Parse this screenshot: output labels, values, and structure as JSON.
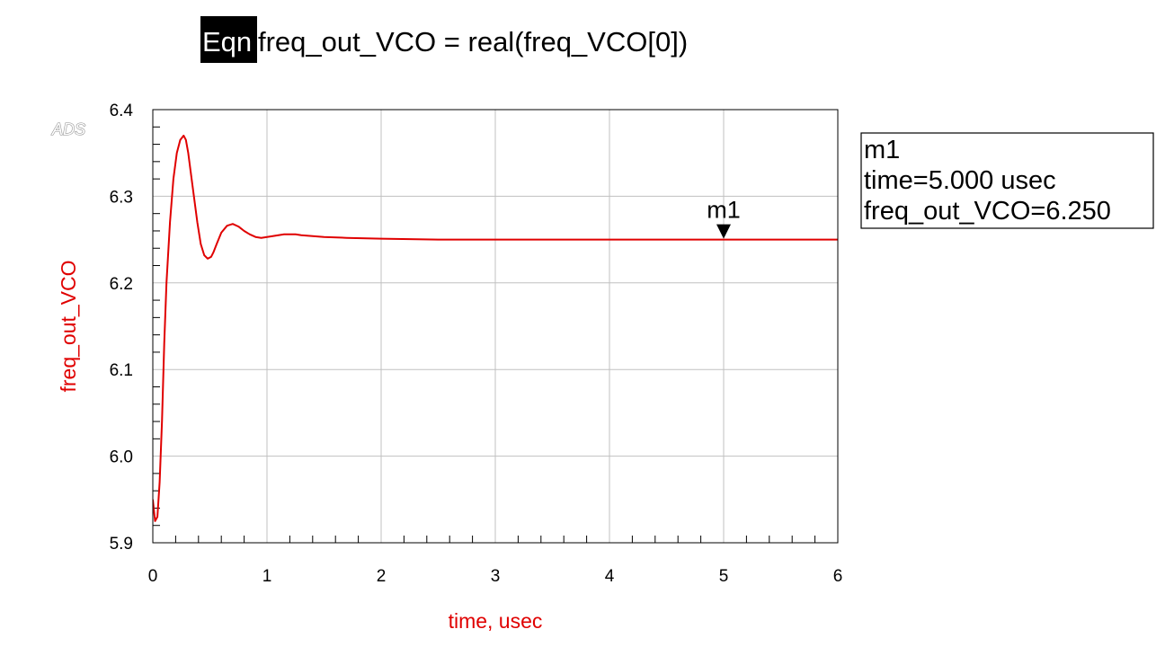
{
  "equation": {
    "tag": "Eqn",
    "text": "freq_out_VCO = real(freq_VCO[0])"
  },
  "logo": "ADS",
  "colors": {
    "trace": "#e00000",
    "axis_title": "#e00000",
    "grid": "#c0c0c0",
    "frame": "#000000"
  },
  "chart_data": {
    "type": "line",
    "xlabel": "time, usec",
    "ylabel": "freq_out_VCO",
    "xlim": [
      0,
      6
    ],
    "ylim": [
      5.9,
      6.4
    ],
    "xticks": [
      "0",
      "1",
      "2",
      "3",
      "4",
      "5",
      "6"
    ],
    "yticks": [
      "5.9",
      "6.0",
      "6.1",
      "6.2",
      "6.3",
      "6.4"
    ],
    "grid": true,
    "series": [
      {
        "name": "freq_out_VCO",
        "x": [
          0.0,
          0.02,
          0.04,
          0.06,
          0.08,
          0.1,
          0.12,
          0.15,
          0.18,
          0.21,
          0.24,
          0.27,
          0.29,
          0.31,
          0.33,
          0.36,
          0.39,
          0.42,
          0.45,
          0.48,
          0.51,
          0.53,
          0.56,
          0.6,
          0.65,
          0.7,
          0.75,
          0.8,
          0.85,
          0.9,
          0.95,
          1.0,
          1.05,
          1.1,
          1.15,
          1.2,
          1.25,
          1.3,
          1.4,
          1.5,
          1.7,
          2.0,
          2.5,
          3.0,
          3.5,
          4.0,
          4.5,
          5.0,
          5.5,
          6.0
        ],
        "y": [
          5.95,
          5.925,
          5.93,
          5.97,
          6.04,
          6.13,
          6.2,
          6.27,
          6.32,
          6.35,
          6.365,
          6.37,
          6.365,
          6.35,
          6.33,
          6.3,
          6.27,
          6.245,
          6.232,
          6.228,
          6.23,
          6.235,
          6.245,
          6.258,
          6.266,
          6.268,
          6.265,
          6.26,
          6.256,
          6.253,
          6.252,
          6.253,
          6.254,
          6.255,
          6.256,
          6.256,
          6.256,
          6.255,
          6.254,
          6.253,
          6.252,
          6.251,
          6.25,
          6.25,
          6.25,
          6.25,
          6.25,
          6.25,
          6.25,
          6.25
        ]
      }
    ],
    "marker": {
      "name": "m1",
      "x": 5.0,
      "y": 6.25,
      "readout": [
        "m1",
        "time=5.000 usec",
        "freq_out_VCO=6.250"
      ]
    }
  }
}
